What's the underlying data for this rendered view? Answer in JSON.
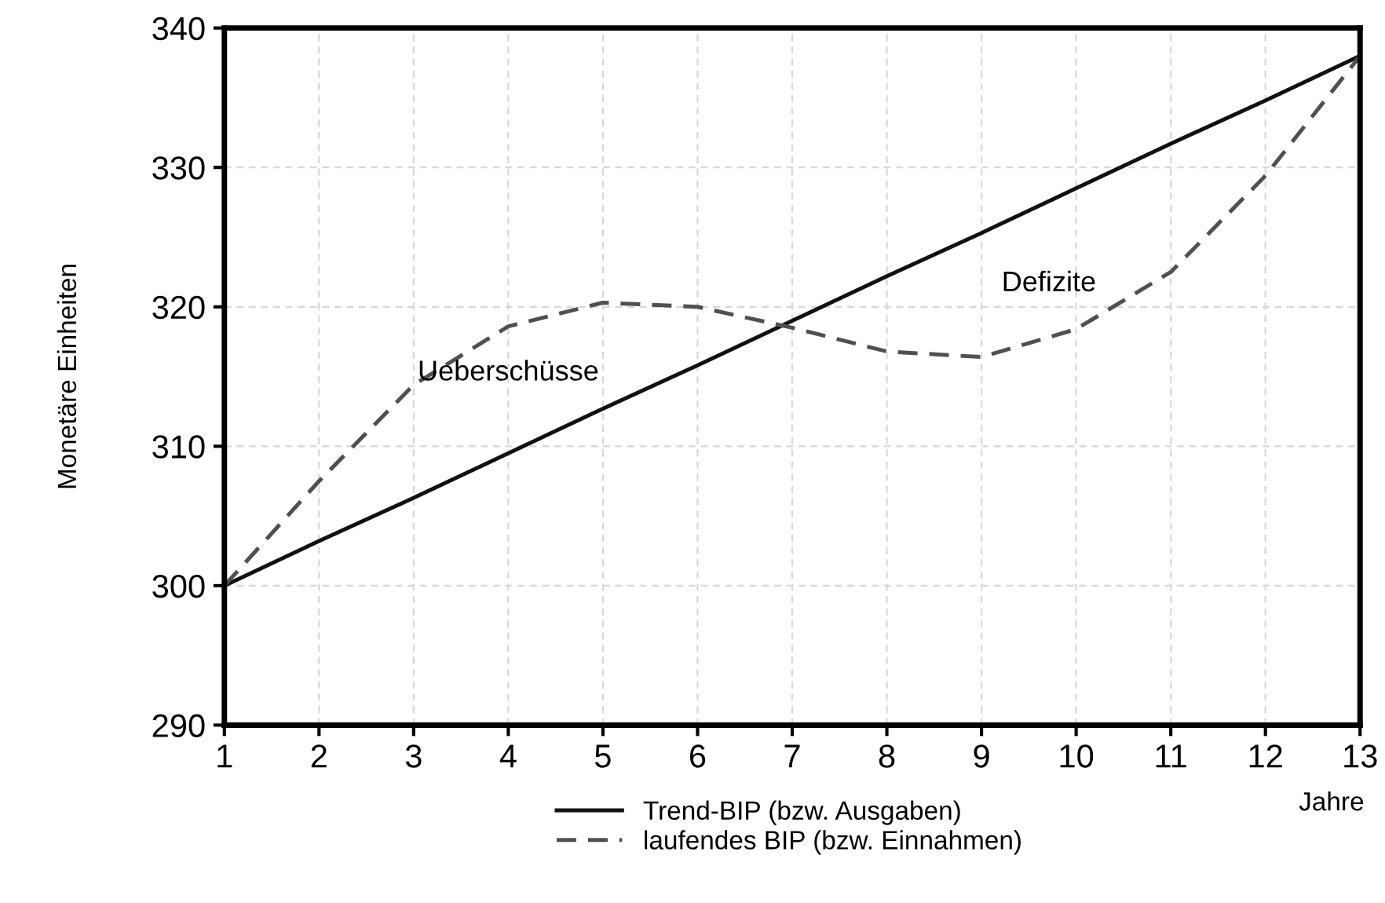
{
  "chart_data": {
    "type": "line",
    "xlabel": "Jahre",
    "ylabel": "Monetäre Einheiten",
    "x": [
      1,
      2,
      3,
      4,
      5,
      6,
      7,
      8,
      9,
      10,
      11,
      12,
      13
    ],
    "series": [
      {
        "name": "Trend-BIP (bzw. Ausgaben)",
        "color": "#111111",
        "line_style": "solid",
        "values": [
          300,
          303.2,
          306.3,
          309.5,
          312.7,
          315.8,
          319,
          322.2,
          325.3,
          328.5,
          331.7,
          334.8,
          338
        ]
      },
      {
        "name": "laufendes BIP (bzw. Einnahmen)",
        "color": "#505050",
        "line_style": "dashed",
        "values": [
          300,
          307.5,
          314.4,
          318.6,
          320.3,
          320,
          318.5,
          316.8,
          316.4,
          318.4,
          322.5,
          329.4,
          338
        ]
      }
    ],
    "xlim": [
      1,
      13
    ],
    "xticks": [
      1,
      2,
      3,
      4,
      5,
      6,
      7,
      8,
      9,
      10,
      11,
      12,
      13
    ],
    "ylim": [
      290,
      340
    ],
    "yticks": [
      290,
      300,
      310,
      320,
      330,
      340
    ],
    "grid": true,
    "legend": "bottom",
    "marker": "none",
    "annotations": [
      "Ueberschüsse",
      "Defizite"
    ]
  }
}
